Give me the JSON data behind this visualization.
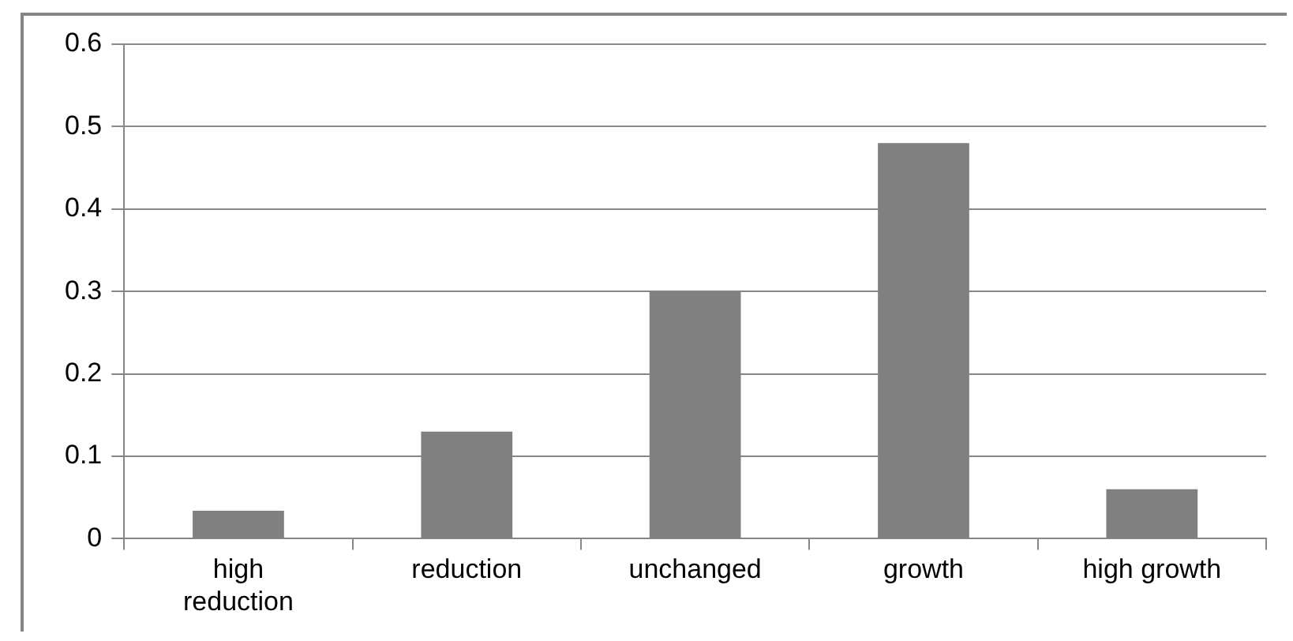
{
  "chart_data": {
    "type": "bar",
    "categories": [
      "high reduction",
      "reduction",
      "unchanged",
      "growth",
      "high growth"
    ],
    "values": [
      0.034,
      0.13,
      0.3,
      0.48,
      0.06
    ],
    "color": "#808080",
    "ylim": [
      0,
      0.6
    ],
    "yticks": [
      0,
      0.1,
      0.2,
      0.3,
      0.4,
      0.5,
      0.6
    ],
    "grid": "y",
    "legend": false
  }
}
